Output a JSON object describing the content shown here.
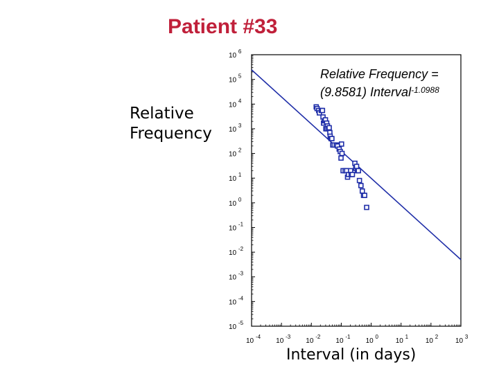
{
  "chart_data": {
    "type": "scatter",
    "title": "Patient #33",
    "xlabel": "Interval (in days)",
    "ylabel": "Relative Frequency",
    "xscale": "log",
    "yscale": "log",
    "xlim": [
      0.0001,
      1000
    ],
    "ylim": [
      1e-05,
      1000000
    ],
    "x_ticks": [
      {
        "value": 0.0001,
        "base": "10",
        "exp": "-4"
      },
      {
        "value": 0.001,
        "base": "10",
        "exp": "-3"
      },
      {
        "value": 0.01,
        "base": "10",
        "exp": "-2"
      },
      {
        "value": 0.1,
        "base": "10",
        "exp": "-1"
      },
      {
        "value": 1,
        "base": "10",
        "exp": "0"
      },
      {
        "value": 10,
        "base": "10",
        "exp": "1"
      },
      {
        "value": 100,
        "base": "10",
        "exp": "2"
      },
      {
        "value": 1000,
        "base": "10",
        "exp": "3"
      }
    ],
    "y_ticks": [
      {
        "value": 1000000,
        "base": "10",
        "exp": "6"
      },
      {
        "value": 100000,
        "base": "10",
        "exp": "5"
      },
      {
        "value": 10000,
        "base": "10",
        "exp": "4"
      },
      {
        "value": 1000,
        "base": "10",
        "exp": "3"
      },
      {
        "value": 100,
        "base": "10",
        "exp": "2"
      },
      {
        "value": 10,
        "base": "10",
        "exp": "1"
      },
      {
        "value": 1,
        "base": "10",
        "exp": "0"
      },
      {
        "value": 0.1,
        "base": "10",
        "exp": "-1"
      },
      {
        "value": 0.01,
        "base": "10",
        "exp": "-2"
      },
      {
        "value": 0.001,
        "base": "10",
        "exp": "-3"
      },
      {
        "value": 0.0001,
        "base": "10",
        "exp": "-4"
      },
      {
        "value": 1e-05,
        "base": "10",
        "exp": "-5"
      }
    ],
    "fit": {
      "coefficient": 9.8581,
      "exponent": -1.0988,
      "label_line1": "Relative Frequency =",
      "label_line2": "(9.8581) Interval",
      "label_exponent": "-1.0988"
    },
    "points": [
      [
        0.0145,
        7700
      ],
      [
        0.0155,
        6600
      ],
      [
        0.0175,
        5500
      ],
      [
        0.0185,
        4400
      ],
      [
        0.0215,
        5500
      ],
      [
        0.0235,
        5500
      ],
      [
        0.0245,
        3000
      ],
      [
        0.0255,
        1700
      ],
      [
        0.0275,
        2100
      ],
      [
        0.0295,
        2300
      ],
      [
        0.0325,
        1700
      ],
      [
        0.0345,
        1300
      ],
      [
        0.0305,
        1000
      ],
      [
        0.0335,
        1000
      ],
      [
        0.0375,
        1000
      ],
      [
        0.0395,
        1100
      ],
      [
        0.0415,
        700
      ],
      [
        0.0425,
        500
      ],
      [
        0.0455,
        400
      ],
      [
        0.0485,
        400
      ],
      [
        0.052,
        220
      ],
      [
        0.058,
        220
      ],
      [
        0.068,
        220
      ],
      [
        0.075,
        200
      ],
      [
        0.085,
        150
      ],
      [
        0.092,
        120
      ],
      [
        0.102,
        240
      ],
      [
        0.106,
        100
      ],
      [
        0.098,
        65
      ],
      [
        0.115,
        20
      ],
      [
        0.135,
        20
      ],
      [
        0.152,
        20
      ],
      [
        0.162,
        11
      ],
      [
        0.175,
        14
      ],
      [
        0.205,
        20
      ],
      [
        0.215,
        14
      ],
      [
        0.235,
        14
      ],
      [
        0.285,
        40
      ],
      [
        0.305,
        25
      ],
      [
        0.325,
        30
      ],
      [
        0.345,
        20
      ],
      [
        0.375,
        20
      ],
      [
        0.405,
        8
      ],
      [
        0.455,
        5
      ],
      [
        0.505,
        3
      ],
      [
        0.555,
        2
      ],
      [
        0.605,
        2
      ],
      [
        0.705,
        0.65
      ]
    ],
    "grid": false,
    "legend": "none",
    "colors": {
      "points": "#1f2ea8",
      "fit_line": "#1f2ea8",
      "axes": "#000000",
      "title": "#c0203a"
    }
  }
}
